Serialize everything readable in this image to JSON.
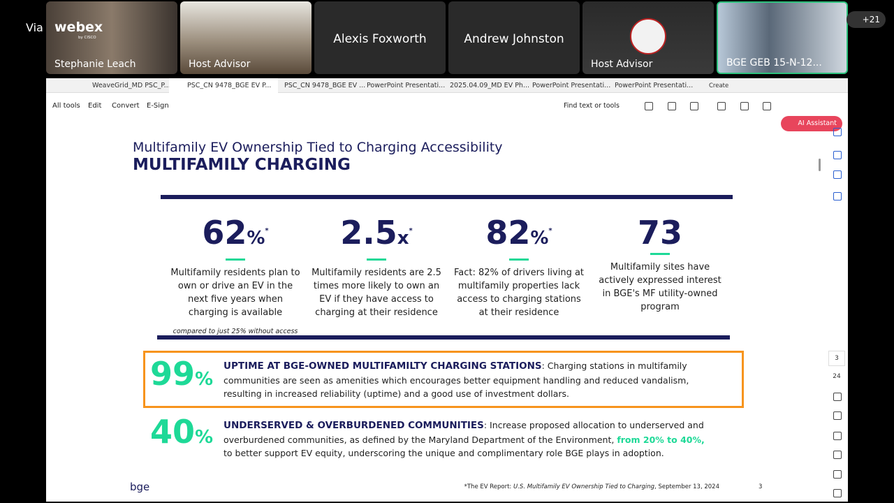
{
  "meeting": {
    "brand_prefix": "Via",
    "brand": "webex",
    "brand_sub": "by CISCO",
    "participants": [
      "Stephanie Leach",
      "Host Advisor",
      "Alexis Foxworth",
      "Andrew Johnston",
      "Host Advisor",
      "BGE GEB 15-N-12..."
    ],
    "more_count": "+21"
  },
  "browser": {
    "tabs": [
      "WeaveGrid_MD PSC_P...",
      "PSC_CN 9478_BGE EV P...",
      "PSC_CN 9478_BGE EV ...",
      "PowerPoint Presentati...",
      "2025.04.09_MD EV Ph...",
      "PowerPoint Presentati...",
      "PowerPoint Presentati..."
    ],
    "new_tab": "Create",
    "menu": [
      "All tools",
      "Edit",
      "Convert",
      "E-Sign"
    ],
    "search": "Find text or tools",
    "ai": "AI Assistant",
    "page_current": "3",
    "page_total": "24"
  },
  "slide": {
    "subtitle": "Multifamily EV Ownership Tied to Charging Accessibility",
    "title": "MULTIFAMILY CHARGING",
    "stats": [
      {
        "value": "62",
        "unit": "%",
        "mark": "*",
        "text": "Multifamily residents plan to own or drive an EV in the next five years when charging is available",
        "note": "compared to just 25% without access"
      },
      {
        "value": "2.5",
        "unit": "x",
        "mark": "*",
        "text": "Multifamily residents are 2.5 times more likely to own an EV if they have access to charging at their residence"
      },
      {
        "value": "82",
        "unit": "%",
        "mark": "*",
        "text": "Fact: 82% of drivers living at multifamily properties lack access to charging stations at their residence"
      },
      {
        "value": "73",
        "text": "Multifamily sites have actively expressed interest in BGE's MF utility-owned program"
      }
    ],
    "highlights": [
      {
        "value": "99",
        "unit": "%",
        "heading": "UPTIME AT BGE-OWNED MULTIFAMILTY CHARGING STATIONS",
        "text": ": Charging stations in multifamily communities are seen as amenities which encourages better equipment handling and reduced vandalism, resulting in increased reliability (uptime) and a good use of investment dollars."
      },
      {
        "value": "40",
        "unit": "%",
        "heading": "UNDERSERVED & OVERBURDENED COMMUNITIES",
        "text": ": Increase proposed allocation to underserved and overburdened communities, as defined by the Maryland Department of the Environment, ",
        "emphasis": "from 20% to 40%,",
        "text_end": " to better support EV equity, underscoring the unique and complimentary role BGE plays in adoption."
      }
    ],
    "logo": "bge",
    "footnote": {
      "prefix": "*The EV Report: ",
      "source": "U.S. Multifamily EV Ownership Tied to Charging",
      "date": ", September 13, 2024"
    },
    "page_number": "3"
  }
}
